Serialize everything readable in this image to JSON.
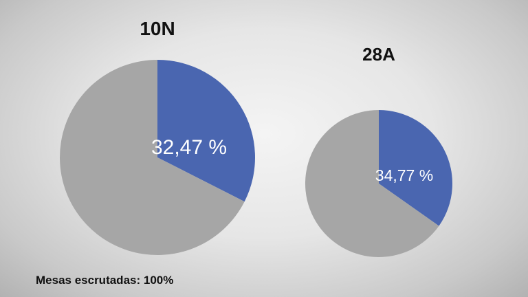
{
  "chart_data": [
    {
      "type": "pie",
      "title": "10N",
      "slices": [
        {
          "value": 32.47,
          "label": "32,47 %",
          "color": "#4a66b0"
        },
        {
          "value": 67.53,
          "label": "",
          "color": "#a6a6a6"
        }
      ]
    },
    {
      "type": "pie",
      "title": "28A",
      "slices": [
        {
          "value": 34.77,
          "label": "34,77 %",
          "color": "#4a66b0"
        },
        {
          "value": 65.23,
          "label": "",
          "color": "#a6a6a6"
        }
      ]
    }
  ],
  "footnote": "Mesas escrutadas: 100%"
}
